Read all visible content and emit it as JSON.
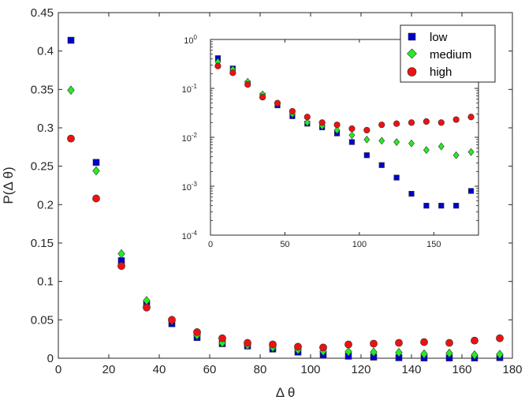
{
  "chart_data": [
    {
      "type": "scatter",
      "panel": "main",
      "xlabel": "Δ θ",
      "ylabel": "P(Δ θ)",
      "xlim": [
        0,
        180
      ],
      "ylim": [
        0,
        0.45
      ],
      "x_ticks": [
        "0",
        "20",
        "40",
        "60",
        "80",
        "100",
        "120",
        "140",
        "160",
        "180"
      ],
      "y_ticks": [
        "0",
        "0.05",
        "0.1",
        "0.15",
        "0.2",
        "0.25",
        "0.3",
        "0.35",
        "0.4",
        "0.45"
      ],
      "x": [
        5,
        15,
        25,
        35,
        45,
        55,
        65,
        75,
        85,
        95,
        105,
        115,
        125,
        135,
        145,
        155,
        165,
        175
      ],
      "series": [
        {
          "name": "low",
          "values": [
            0.414,
            0.255,
            0.127,
            0.071,
            0.045,
            0.027,
            0.019,
            0.016,
            0.012,
            0.008,
            0.0043,
            0.0027,
            0.0015,
            0.0007,
            0.0004,
            0.0004,
            0.0004,
            0.0008
          ]
        },
        {
          "name": "medium",
          "values": [
            0.349,
            0.244,
            0.136,
            0.075,
            0.049,
            0.03,
            0.02,
            0.017,
            0.014,
            0.011,
            0.009,
            0.0085,
            0.008,
            0.0075,
            0.0055,
            0.0065,
            0.0043,
            0.005
          ]
        },
        {
          "name": "high",
          "values": [
            0.286,
            0.208,
            0.12,
            0.066,
            0.05,
            0.034,
            0.026,
            0.02,
            0.018,
            0.015,
            0.014,
            0.018,
            0.019,
            0.02,
            0.021,
            0.02,
            0.023,
            0.026
          ]
        }
      ]
    },
    {
      "type": "scatter",
      "panel": "inset",
      "yscale": "log",
      "xlim": [
        0,
        180
      ],
      "ylim": [
        0.0001,
        1
      ],
      "x_ticks": [
        "0",
        "50",
        "100",
        "150"
      ],
      "y_ticks": [
        {
          "base": "10",
          "exp": "0"
        },
        {
          "base": "10",
          "exp": "-1"
        },
        {
          "base": "10",
          "exp": "-2"
        },
        {
          "base": "10",
          "exp": "-3"
        },
        {
          "base": "10",
          "exp": "-4"
        }
      ],
      "x": [
        5,
        15,
        25,
        35,
        45,
        55,
        65,
        75,
        85,
        95,
        105,
        115,
        125,
        135,
        145,
        155,
        165,
        175
      ],
      "series": [
        {
          "name": "low",
          "values": [
            0.414,
            0.255,
            0.127,
            0.071,
            0.045,
            0.027,
            0.019,
            0.016,
            0.012,
            0.008,
            0.0043,
            0.0027,
            0.0015,
            0.0007,
            0.0004,
            0.0004,
            0.0004,
            0.0008
          ]
        },
        {
          "name": "medium",
          "values": [
            0.349,
            0.244,
            0.136,
            0.075,
            0.049,
            0.03,
            0.02,
            0.017,
            0.014,
            0.011,
            0.009,
            0.0085,
            0.008,
            0.0075,
            0.0055,
            0.0065,
            0.0043,
            0.005
          ]
        },
        {
          "name": "high",
          "values": [
            0.286,
            0.208,
            0.12,
            0.066,
            0.05,
            0.034,
            0.026,
            0.02,
            0.018,
            0.015,
            0.014,
            0.018,
            0.019,
            0.02,
            0.021,
            0.02,
            0.023,
            0.026
          ]
        }
      ]
    }
  ],
  "legend": {
    "placement": "top-right",
    "entries": [
      {
        "label": "low",
        "marker": "square",
        "color": "#0000cc"
      },
      {
        "label": "medium",
        "marker": "diamond",
        "color": "#22ee22"
      },
      {
        "label": "high",
        "marker": "circle",
        "color": "#ee1111"
      }
    ]
  },
  "colors": {
    "low_fill": "#0000cc",
    "medium_fill": "#22ee22",
    "high_fill": "#ee1111",
    "marker_edge": "#333333",
    "axis": "#262626"
  }
}
